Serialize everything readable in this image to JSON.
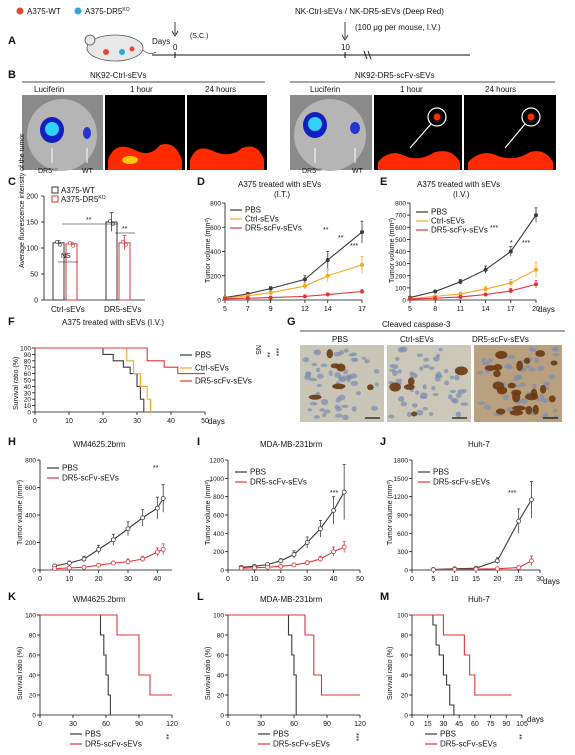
{
  "colors": {
    "pbs": "#3a3a3a",
    "ctrl": "#f5a623",
    "dr5": "#e0353b",
    "wt": "#e04b2e",
    "ko": "#2aa7e0",
    "heat": "#ff2a00",
    "bg": "#000000"
  },
  "A": {
    "letter": "A",
    "legend": [
      {
        "label": "A375-WT"
      },
      {
        "label": "A375-DR5",
        "sup": "KO"
      }
    ],
    "days_label": "Days",
    "day0": "0",
    "day0_note": "(S.C.)",
    "day10": "10",
    "day10_title": "NK-Ctrl-sEVs / NK-DR5-sEVs (Deep Red)",
    "day10_note": "(100 μg per mouse, I.V.)"
  },
  "B": {
    "letter": "B",
    "group1": "NK92-Ctrl-sEVs",
    "group2": "NK92-DR5-scFv-sEVs",
    "cols": [
      "Luciferin",
      "1 hour",
      "24 hours",
      "Luciferin",
      "1 hour",
      "24 hours"
    ],
    "arrow_dr5": "DR5",
    "arrow_dr5_sup": "KO",
    "arrow_wt": "WT"
  },
  "C": {
    "letter": "C",
    "ylabel": "Average fluorescence intensity of the tumor",
    "yticks": [
      "0",
      "50",
      "100",
      "150",
      "200"
    ],
    "legend": [
      {
        "label": "A375-WT"
      },
      {
        "label": "A375-DR5",
        "sup": "KO"
      }
    ],
    "groups": [
      "Ctrl-sEVs",
      "DR5-sEVs"
    ],
    "sig": [
      "NS",
      "**",
      "**"
    ]
  },
  "D": {
    "letter": "D",
    "title": "A375 treated with sEVs",
    "title2": "(I.T.)",
    "ylabel": "Tumor volume (mm³)",
    "series": [
      "PBS",
      "Ctrl-sEVs",
      "DR5-scFv-sEVs"
    ],
    "sig": [
      "**",
      "**",
      "***"
    ]
  },
  "E": {
    "letter": "E",
    "title": "A375 treated with sEVs",
    "title2": "(I.V.)",
    "ylabel": "Tumor volume (mm³)",
    "series": [
      "PBS",
      "Ctrl-sEVs",
      "DR5-scFv-sEVs"
    ],
    "sig": [
      "***",
      "*",
      "***"
    ],
    "xunit": "days"
  },
  "F": {
    "letter": "F",
    "title": "A375 treated with sEVs (I.V.)",
    "ylabel": "Survival ratio (%)",
    "series": [
      "PBS",
      "Ctrl-sEVs",
      "DR5-scFv-sEVs"
    ],
    "sig": [
      "NS",
      "**",
      "***"
    ],
    "xunit": "days"
  },
  "G": {
    "letter": "G",
    "title": "Cleaved caspase-3",
    "cols": [
      "PBS",
      "Ctrl-sEVs",
      "DR5-scFv-sEVs"
    ]
  },
  "H": {
    "letter": "H",
    "title": "WM4625.2brm",
    "ylabel": "Tumor volume (mm³)",
    "series": [
      "PBS",
      "DR5-scFv-sEVs"
    ],
    "sig": "**"
  },
  "I": {
    "letter": "I",
    "title": "MDA-MB-231brm",
    "ylabel": "Tumor volume (mm³)",
    "series": [
      "PBS",
      "DR5-scFv-sEVs"
    ],
    "sig": "***"
  },
  "J": {
    "letter": "J",
    "title": "Huh-7",
    "ylabel": "Tumor volume (mm³)",
    "series": [
      "PBS",
      "DR5-scFv-sEVs"
    ],
    "sig": "***",
    "xunit": "days"
  },
  "K": {
    "letter": "K",
    "title": "WM4625.2brm",
    "ylabel": "Survival ratio (%)",
    "series": [
      "PBS",
      "DR5-scFv-sEVs"
    ],
    "sig": "**"
  },
  "L": {
    "letter": "L",
    "title": "MDA-MB-231brm",
    "ylabel": "Survival ratio (%)",
    "series": [
      "PBS",
      "DR5-scFv-sEVs"
    ],
    "sig": "***"
  },
  "M": {
    "letter": "M",
    "title": "Huh-7",
    "ylabel": "Survival ratio (%)",
    "series": [
      "PBS",
      "DR5-scFv-sEVs"
    ],
    "sig": "**",
    "xunit": "days"
  },
  "chart_data": [
    {
      "panel": "C",
      "type": "bar",
      "categories": [
        "Ctrl-sEVs",
        "DR5-sEVs"
      ],
      "ylim": [
        0,
        200
      ],
      "series": [
        {
          "name": "A375-WT",
          "values": [
            110,
            150
          ],
          "err": [
            4,
            18
          ]
        },
        {
          "name": "A375-DR5KO",
          "values": [
            108,
            110
          ],
          "err": [
            3,
            14
          ]
        }
      ]
    },
    {
      "panel": "D",
      "type": "line",
      "x": [
        5,
        7,
        9,
        12,
        14,
        17
      ],
      "ylim": [
        0,
        800
      ],
      "xticks": [
        5,
        7,
        9,
        12,
        14,
        17
      ],
      "yticks": [
        0,
        200,
        400,
        600,
        800
      ],
      "series": [
        {
          "name": "PBS",
          "values": [
            20,
            50,
            95,
            170,
            330,
            560
          ],
          "err": [
            5,
            10,
            15,
            30,
            70,
            90
          ]
        },
        {
          "name": "Ctrl-sEVs",
          "values": [
            15,
            35,
            60,
            115,
            200,
            290
          ],
          "err": [
            4,
            8,
            12,
            25,
            50,
            70
          ]
        },
        {
          "name": "DR5-scFv-sEVs",
          "values": [
            10,
            15,
            20,
            30,
            45,
            70
          ],
          "err": [
            3,
            4,
            5,
            8,
            10,
            15
          ]
        }
      ]
    },
    {
      "panel": "E",
      "type": "line",
      "x": [
        5,
        8,
        11,
        14,
        17,
        20
      ],
      "ylim": [
        0,
        800
      ],
      "xticks": [
        5,
        8,
        11,
        14,
        17,
        20
      ],
      "yticks": [
        0,
        100,
        200,
        300,
        400,
        500,
        600,
        700,
        800
      ],
      "series": [
        {
          "name": "PBS",
          "values": [
            20,
            70,
            150,
            250,
            400,
            700
          ],
          "err": [
            5,
            10,
            20,
            30,
            40,
            60
          ]
        },
        {
          "name": "Ctrl-sEVs",
          "values": [
            10,
            30,
            50,
            90,
            140,
            250
          ],
          "err": [
            3,
            8,
            15,
            20,
            30,
            60
          ]
        },
        {
          "name": "DR5-scFv-sEVs",
          "values": [
            8,
            15,
            25,
            45,
            75,
            130
          ],
          "err": [
            2,
            4,
            6,
            10,
            20,
            30
          ]
        }
      ]
    },
    {
      "panel": "F",
      "type": "line",
      "xlim": [
        0,
        50
      ],
      "ylim": [
        0,
        100
      ],
      "xticks": [
        0,
        10,
        20,
        30,
        40,
        50
      ],
      "yticks": [
        0,
        10,
        20,
        30,
        40,
        50,
        60,
        70,
        80,
        90,
        100
      ],
      "series": [
        {
          "name": "PBS",
          "steps": [
            [
              0,
              100
            ],
            [
              20,
              100
            ],
            [
              20,
              90
            ],
            [
              23,
              90
            ],
            [
              23,
              80
            ],
            [
              26,
              80
            ],
            [
              26,
              70
            ],
            [
              28,
              70
            ],
            [
              28,
              60
            ],
            [
              30,
              60
            ],
            [
              30,
              40
            ],
            [
              31,
              40
            ],
            [
              31,
              20
            ],
            [
              32,
              20
            ],
            [
              32,
              0
            ]
          ]
        },
        {
          "name": "Ctrl-sEVs",
          "steps": [
            [
              0,
              100
            ],
            [
              27,
              100
            ],
            [
              27,
              80
            ],
            [
              29,
              80
            ],
            [
              29,
              60
            ],
            [
              31,
              60
            ],
            [
              31,
              40
            ],
            [
              33,
              40
            ],
            [
              33,
              20
            ],
            [
              34,
              20
            ],
            [
              34,
              0
            ]
          ]
        },
        {
          "name": "DR5-scFv-sEVs",
          "steps": [
            [
              0,
              100
            ],
            [
              33,
              100
            ],
            [
              33,
              80
            ],
            [
              38,
              80
            ],
            [
              38,
              70
            ],
            [
              42,
              70
            ],
            [
              42,
              60
            ],
            [
              50,
              60
            ]
          ]
        }
      ]
    },
    {
      "panel": "H",
      "type": "line",
      "x": [
        5,
        10,
        15,
        20,
        25,
        30,
        35,
        40,
        42
      ],
      "ylim": [
        0,
        800
      ],
      "xlim": [
        0,
        45
      ],
      "xticks": [
        0,
        10,
        20,
        30,
        40
      ],
      "yticks": [
        0,
        200,
        400,
        600,
        800
      ],
      "series": [
        {
          "name": "PBS",
          "values": [
            30,
            50,
            80,
            150,
            220,
            300,
            380,
            450,
            520
          ],
          "err": [
            10,
            15,
            20,
            30,
            40,
            50,
            60,
            80,
            100
          ]
        },
        {
          "name": "DR5-scFv-sEVs",
          "values": [
            10,
            15,
            20,
            35,
            50,
            60,
            80,
            130,
            150
          ],
          "err": [
            4,
            5,
            6,
            10,
            15,
            20,
            20,
            30,
            40
          ]
        }
      ]
    },
    {
      "panel": "I",
      "type": "line",
      "x": [
        5,
        10,
        15,
        20,
        25,
        30,
        35,
        40,
        44
      ],
      "ylim": [
        0,
        1200
      ],
      "xlim": [
        0,
        50
      ],
      "xticks": [
        0,
        10,
        20,
        30,
        40,
        50
      ],
      "yticks": [
        0,
        200,
        400,
        600,
        800,
        1000,
        1200
      ],
      "series": [
        {
          "name": "PBS",
          "values": [
            30,
            40,
            60,
            100,
            170,
            300,
            450,
            650,
            850
          ],
          "err": [
            10,
            10,
            15,
            25,
            40,
            60,
            90,
            150,
            300
          ]
        },
        {
          "name": "DR5-scFv-sEVs",
          "values": [
            20,
            25,
            30,
            40,
            55,
            80,
            120,
            200,
            250
          ],
          "err": [
            5,
            5,
            8,
            10,
            15,
            20,
            30,
            50,
            60
          ]
        }
      ]
    },
    {
      "panel": "J",
      "type": "line",
      "x": [
        5,
        10,
        15,
        20,
        25,
        28
      ],
      "ylim": [
        0,
        1800
      ],
      "xlim": [
        0,
        30
      ],
      "xticks": [
        0,
        5,
        10,
        15,
        20,
        25,
        30
      ],
      "yticks": [
        0,
        300,
        600,
        900,
        1200,
        1500,
        1800
      ],
      "series": [
        {
          "name": "PBS",
          "values": [
            10,
            20,
            30,
            150,
            800,
            1150
          ],
          "err": [
            5,
            5,
            10,
            50,
            200,
            300
          ]
        },
        {
          "name": "DR5-scFv-sEVs",
          "values": [
            5,
            10,
            15,
            20,
            40,
            150
          ],
          "err": [
            2,
            3,
            5,
            8,
            20,
            80
          ]
        }
      ]
    },
    {
      "panel": "K",
      "type": "line",
      "xlim": [
        0,
        120
      ],
      "ylim": [
        0,
        100
      ],
      "xticks": [
        0,
        30,
        60,
        90,
        120
      ],
      "yticks": [
        0,
        20,
        40,
        60,
        80,
        100
      ],
      "series": [
        {
          "name": "PBS",
          "steps": [
            [
              0,
              100
            ],
            [
              55,
              100
            ],
            [
              55,
              80
            ],
            [
              58,
              80
            ],
            [
              58,
              60
            ],
            [
              60,
              60
            ],
            [
              60,
              40
            ],
            [
              62,
              40
            ],
            [
              62,
              20
            ],
            [
              64,
              20
            ],
            [
              64,
              0
            ]
          ]
        },
        {
          "name": "DR5-scFv-sEVs",
          "steps": [
            [
              0,
              100
            ],
            [
              70,
              100
            ],
            [
              70,
              80
            ],
            [
              90,
              80
            ],
            [
              90,
              40
            ],
            [
              100,
              40
            ],
            [
              100,
              20
            ],
            [
              120,
              20
            ]
          ]
        }
      ]
    },
    {
      "panel": "L",
      "type": "line",
      "xlim": [
        0,
        120
      ],
      "ylim": [
        0,
        100
      ],
      "xticks": [
        0,
        30,
        60,
        90,
        120
      ],
      "yticks": [
        0,
        20,
        40,
        60,
        80,
        100
      ],
      "series": [
        {
          "name": "PBS",
          "steps": [
            [
              0,
              100
            ],
            [
              55,
              100
            ],
            [
              55,
              80
            ],
            [
              58,
              80
            ],
            [
              58,
              60
            ],
            [
              60,
              60
            ],
            [
              60,
              40
            ],
            [
              62,
              40
            ],
            [
              62,
              0
            ]
          ]
        },
        {
          "name": "DR5-scFv-sEVs",
          "steps": [
            [
              0,
              100
            ],
            [
              70,
              100
            ],
            [
              70,
              80
            ],
            [
              78,
              80
            ],
            [
              78,
              40
            ],
            [
              85,
              40
            ],
            [
              85,
              20
            ],
            [
              120,
              20
            ]
          ]
        }
      ]
    },
    {
      "panel": "M",
      "type": "line",
      "xlim": [
        0,
        105
      ],
      "ylim": [
        0,
        100
      ],
      "xticks": [
        0,
        15,
        30,
        45,
        60,
        75,
        90,
        105
      ],
      "yticks": [
        0,
        20,
        40,
        60,
        80,
        100
      ],
      "series": [
        {
          "name": "PBS",
          "steps": [
            [
              0,
              100
            ],
            [
              20,
              100
            ],
            [
              20,
              90
            ],
            [
              23,
              90
            ],
            [
              23,
              70
            ],
            [
              26,
              70
            ],
            [
              26,
              60
            ],
            [
              30,
              60
            ],
            [
              30,
              40
            ],
            [
              33,
              40
            ],
            [
              33,
              30
            ],
            [
              36,
              30
            ],
            [
              36,
              10
            ],
            [
              40,
              10
            ],
            [
              40,
              0
            ]
          ]
        },
        {
          "name": "DR5-scFv-sEVs",
          "steps": [
            [
              0,
              100
            ],
            [
              30,
              100
            ],
            [
              30,
              80
            ],
            [
              50,
              80
            ],
            [
              50,
              60
            ],
            [
              55,
              60
            ],
            [
              55,
              40
            ],
            [
              60,
              40
            ],
            [
              60,
              20
            ],
            [
              95,
              20
            ]
          ]
        }
      ]
    }
  ]
}
